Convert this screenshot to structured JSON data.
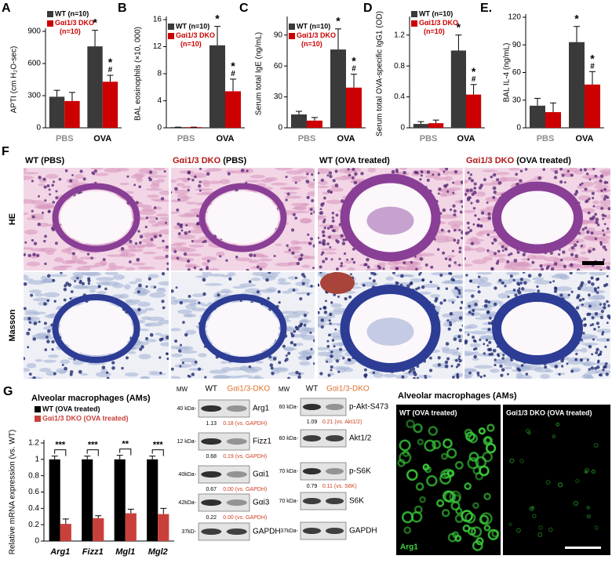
{
  "chart_data": [
    {
      "type": "bar",
      "panel": "A",
      "ylabel": "APTI (cm H₂O-sec)",
      "categories": [
        "PBS",
        "OVA"
      ],
      "category_colors": [
        "#8c8c8c",
        "#000000"
      ],
      "series": [
        {
          "name": "WT (n=10)",
          "color": "#3a3a3a",
          "values": [
            290,
            760
          ],
          "errors": [
            60,
            150
          ],
          "annotations": [
            null,
            "*"
          ]
        },
        {
          "name": "Gαi1/3 DKO (n=10)",
          "color": "#cc0000",
          "values": [
            250,
            430
          ],
          "errors": [
            80,
            60
          ],
          "annotations": [
            null,
            "*#"
          ]
        }
      ],
      "ylim": [
        0,
        900
      ],
      "yticks": [
        0,
        300,
        600,
        900
      ],
      "legend": "upper left"
    },
    {
      "type": "bar",
      "panel": "B",
      "ylabel": "BAL eosinophils (×10, 000)",
      "categories": [
        "PBS",
        "OVA"
      ],
      "category_colors": [
        "#8c8c8c",
        "#000000"
      ],
      "series": [
        {
          "name": "WT (n=10)",
          "color": "#3a3a3a",
          "values": [
            0.1,
            12.2
          ],
          "errors": [
            0,
            2.8
          ],
          "annotations": [
            null,
            "*"
          ]
        },
        {
          "name": "Gαi1/3 DKO (n=10)",
          "color": "#cc0000",
          "values": [
            0.1,
            5.4
          ],
          "errors": [
            0,
            1.8
          ],
          "annotations": [
            null,
            "*#"
          ]
        }
      ],
      "ylim": [
        0,
        16
      ],
      "yticks": [
        0,
        4,
        8,
        12,
        16
      ],
      "legend": "upper left"
    },
    {
      "type": "bar",
      "panel": "C",
      "ylabel": "Serum total IgE (ng/mL)",
      "categories": [
        "PBS",
        "OVA"
      ],
      "category_colors": [
        "#8c8c8c",
        "#000000"
      ],
      "series": [
        {
          "name": "WT (n=10)",
          "color": "#3a3a3a",
          "values": [
            13,
            76
          ],
          "errors": [
            3,
            20
          ],
          "annotations": [
            null,
            "*"
          ]
        },
        {
          "name": "Gαi1/3 DKO (n=10)",
          "color": "#cc0000",
          "values": [
            7,
            39
          ],
          "errors": [
            3,
            13
          ],
          "annotations": [
            null,
            "*#"
          ]
        }
      ],
      "ylim": [
        0,
        105
      ],
      "yticks": [
        0,
        30,
        60,
        90
      ],
      "legend": "upper left"
    },
    {
      "type": "bar",
      "panel": "D",
      "ylabel": "Serum total OVA-specific IgG1 (OD)",
      "categories": [
        "PBS",
        "OVA"
      ],
      "category_colors": [
        "#8c8c8c",
        "#000000"
      ],
      "series": [
        {
          "name": "WT (n=10)",
          "color": "#3a3a3a",
          "values": [
            0.05,
            1.0
          ],
          "errors": [
            0.03,
            0.2
          ],
          "annotations": [
            null,
            "*"
          ]
        },
        {
          "name": "Gαi1/3 DKO (n=10)",
          "color": "#cc0000",
          "values": [
            0.06,
            0.43
          ],
          "errors": [
            0.04,
            0.13
          ],
          "annotations": [
            null,
            "*#"
          ]
        }
      ],
      "ylim": [
        0,
        1.4
      ],
      "yticks": [
        0,
        0.4,
        0.8,
        1.2
      ],
      "legend": "upper left"
    },
    {
      "type": "bar",
      "panel": "E.",
      "ylabel": "BAL IL-4 (ng/mL)",
      "categories": [
        "PBS",
        "OVA"
      ],
      "category_colors": [
        "#8c8c8c",
        "#000000"
      ],
      "series": [
        {
          "color": "#3a3a3a",
          "values": [
            24,
            93
          ],
          "errors": [
            8,
            17
          ],
          "annotations": [
            null,
            "*"
          ]
        },
        {
          "color": "#cc0000",
          "values": [
            17,
            47
          ],
          "errors": [
            10,
            14
          ],
          "annotations": [
            null,
            "*#"
          ]
        }
      ],
      "ylim": [
        0,
        120
      ],
      "yticks": [
        0,
        30,
        60,
        90,
        120
      ]
    },
    {
      "type": "bar",
      "panel": "G",
      "title": "Alveolar macrophages (AMs)",
      "ylabel": "Relative mRNA expression (vs. WT)",
      "categories": [
        "Arg1",
        "Fizz1",
        "Mgl1",
        "Mgl2"
      ],
      "category_colors": [
        "#000000",
        "#000000",
        "#000000",
        "#000000"
      ],
      "series": [
        {
          "name": "WT (OVA treated)",
          "color": "#000000",
          "values": [
            1,
            1,
            1,
            1
          ],
          "errors": [
            0.04,
            0.04,
            0.05,
            0.04
          ]
        },
        {
          "name": "Gαi1/3 DKO (OVA treated)",
          "color": "#c9403a",
          "values": [
            0.21,
            0.28,
            0.34,
            0.33
          ],
          "errors": [
            0.06,
            0.03,
            0.05,
            0.07
          ]
        }
      ],
      "significance": [
        "***",
        "***",
        "**",
        "***"
      ],
      "ylim": [
        0,
        1.2
      ],
      "yticks": [
        0,
        0.2,
        0.4,
        0.6,
        0.8,
        1,
        1.2
      ],
      "legend": "upper left"
    }
  ],
  "histology": {
    "panel": "F",
    "columns": [
      {
        "strain": "WT",
        "condition": "(PBS)",
        "color": "#000000"
      },
      {
        "strain": "Gαi1/3 DKO",
        "condition": "(PBS)",
        "color": "#b01818"
      },
      {
        "strain": "WT",
        "condition": "(OVA treated)",
        "color": "#000000"
      },
      {
        "strain": "Gαi1/3 DKO",
        "condition": "(OVA treated)",
        "color": "#b01818"
      }
    ],
    "rows": [
      "HE",
      "Masson"
    ]
  },
  "western_blots": [
    {
      "mw": "MW",
      "lanes": [
        "WT",
        "Gαi1/3-DKO"
      ],
      "rows": [
        {
          "size": "40 kDa-",
          "protein": "Arg1",
          "quantification": [
            "1.13",
            "0.18 (vs. GAPDH)"
          ]
        },
        {
          "size": "12 kDa-",
          "protein": "Fizz1",
          "quantification": [
            "0.68",
            "0.19 (vs. GAPDH)"
          ]
        },
        {
          "size": "40kDa-",
          "protein": "Gαi1",
          "quantification": [
            "0.67",
            "0.00 (vs. GAPDH)"
          ]
        },
        {
          "size": "42kDa-",
          "protein": "Gαi3",
          "quantification": [
            "0.22",
            "0.00 (vs. GAPDH)"
          ]
        },
        {
          "size": "37kD-",
          "protein": "GAPDH"
        }
      ]
    },
    {
      "mw": "MW",
      "lanes": [
        "WT",
        "Gαi1/3-DKO"
      ],
      "rows": [
        {
          "size": "60 kDa-",
          "protein": "p-Akt-S473",
          "quantification": [
            "1.09",
            "0.21 (vs. Akt1/2)"
          ]
        },
        {
          "size": "60 kDa-",
          "protein": "Akt1/2"
        },
        {
          "size": "70 kDa-",
          "protein": "p-S6K",
          "quantification": [
            "0.79",
            "0.11 (vs. S6K)"
          ]
        },
        {
          "size": "70 kDa-",
          "protein": "S6K"
        },
        {
          "size": "37kDa-",
          "protein": "GAPDH"
        }
      ]
    }
  ],
  "immunofluorescence": {
    "title": "Alveolar macrophages (AMs)",
    "panels": [
      "WT (OVA treated)",
      "Gαi1/3 DKO (OVA treated)"
    ],
    "stain": "Arg1"
  }
}
